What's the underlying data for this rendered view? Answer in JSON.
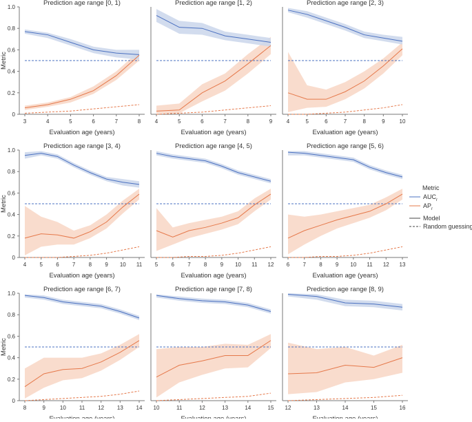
{
  "chart_data": {
    "type": "line",
    "ylabel": "Metric",
    "xlabel": "Evaluation age (years)",
    "ylim": [
      0,
      1
    ],
    "yticks": [
      0,
      0.2,
      0.4,
      0.6,
      0.8,
      1.0
    ],
    "ytick_labels": [
      "0",
      "0.2",
      "0.4",
      "0.6",
      "0.8",
      "1.0"
    ],
    "grid": false,
    "colors": {
      "auc": "#4a70c0",
      "auc_band": "#cdd8ec",
      "ap": "#e5784a",
      "ap_band": "#f8d8c8"
    },
    "legend": {
      "placement": "right",
      "title": "Metric",
      "items": [
        {
          "label": "AUC",
          "sub": "r",
          "kind": "auc"
        },
        {
          "label": "AP",
          "sub": "r",
          "kind": "ap"
        },
        {
          "label": "Model",
          "kind": "solid"
        },
        {
          "label": "Random guessing",
          "kind": "dashed"
        }
      ]
    },
    "panels": [
      {
        "title": "Prediction age range [0, 1)",
        "x": [
          3,
          4,
          5,
          6,
          7,
          8
        ],
        "auc": [
          0.77,
          0.74,
          0.67,
          0.6,
          0.57,
          0.555
        ],
        "auc_lo": [
          0.75,
          0.71,
          0.64,
          0.57,
          0.53,
          0.51
        ],
        "auc_hi": [
          0.79,
          0.76,
          0.7,
          0.63,
          0.6,
          0.6
        ],
        "ap": [
          0.06,
          0.09,
          0.14,
          0.22,
          0.36,
          0.55
        ],
        "ap_lo": [
          0.04,
          0.07,
          0.11,
          0.19,
          0.32,
          0.5
        ],
        "ap_hi": [
          0.08,
          0.11,
          0.16,
          0.26,
          0.4,
          0.59
        ],
        "ap_random": [
          0.01,
          0.02,
          0.03,
          0.05,
          0.07,
          0.09
        ],
        "auc_random": 0.5
      },
      {
        "title": "Prediction age range [1, 2)",
        "x": [
          4,
          5,
          6,
          7,
          8,
          9
        ],
        "auc": [
          0.92,
          0.81,
          0.8,
          0.73,
          0.7,
          0.67
        ],
        "auc_lo": [
          0.86,
          0.75,
          0.74,
          0.69,
          0.66,
          0.63
        ],
        "auc_hi": [
          0.98,
          0.87,
          0.85,
          0.77,
          0.74,
          0.71
        ],
        "ap": [
          0.03,
          0.04,
          0.2,
          0.31,
          0.47,
          0.64
        ],
        "ap_lo": [
          0.01,
          0.01,
          0.12,
          0.22,
          0.38,
          0.56
        ],
        "ap_hi": [
          0.08,
          0.1,
          0.28,
          0.38,
          0.56,
          0.72
        ],
        "ap_random": [
          0.0,
          0.01,
          0.02,
          0.04,
          0.06,
          0.08
        ],
        "auc_random": 0.5
      },
      {
        "title": "Prediction age range [2, 3)",
        "x": [
          4,
          5,
          6,
          7,
          8,
          9,
          10
        ],
        "auc": [
          0.97,
          0.93,
          0.87,
          0.81,
          0.74,
          0.71,
          0.68
        ],
        "auc_lo": [
          0.95,
          0.9,
          0.84,
          0.78,
          0.71,
          0.68,
          0.65
        ],
        "auc_hi": [
          0.99,
          0.96,
          0.9,
          0.84,
          0.77,
          0.74,
          0.72
        ],
        "ap": [
          0.2,
          0.14,
          0.14,
          0.21,
          0.31,
          0.45,
          0.61
        ],
        "ap_lo": [
          0.02,
          0.06,
          0.07,
          0.14,
          0.24,
          0.38,
          0.55
        ],
        "ap_hi": [
          0.58,
          0.27,
          0.23,
          0.3,
          0.4,
          0.52,
          0.67
        ],
        "ap_random": [
          0.0,
          0.0,
          0.01,
          0.02,
          0.04,
          0.06,
          0.09
        ],
        "auc_random": 0.5
      },
      {
        "title": "Prediction age range [3, 4)",
        "x": [
          4,
          5,
          6,
          7,
          8,
          9,
          10,
          11
        ],
        "auc": [
          0.95,
          0.97,
          0.94,
          0.86,
          0.79,
          0.73,
          0.7,
          0.68
        ],
        "auc_lo": [
          0.92,
          0.95,
          0.92,
          0.84,
          0.77,
          0.71,
          0.67,
          0.65
        ],
        "auc_hi": [
          0.98,
          0.99,
          0.96,
          0.88,
          0.81,
          0.75,
          0.73,
          0.71
        ],
        "ap": [
          0.18,
          0.22,
          0.21,
          0.18,
          0.24,
          0.33,
          0.47,
          0.59
        ],
        "ap_lo": [
          0.02,
          0.1,
          0.12,
          0.12,
          0.18,
          0.27,
          0.41,
          0.54
        ],
        "ap_hi": [
          0.48,
          0.38,
          0.33,
          0.25,
          0.3,
          0.4,
          0.53,
          0.64
        ],
        "ap_random": [
          0.0,
          0.0,
          0.0,
          0.01,
          0.02,
          0.04,
          0.07,
          0.1
        ],
        "auc_random": 0.5
      },
      {
        "title": "Prediction age range [4, 5)",
        "x": [
          5,
          6,
          7,
          8,
          9,
          10,
          11,
          12
        ],
        "auc": [
          0.97,
          0.94,
          0.92,
          0.9,
          0.85,
          0.79,
          0.75,
          0.71
        ],
        "auc_lo": [
          0.95,
          0.92,
          0.9,
          0.88,
          0.83,
          0.77,
          0.73,
          0.69
        ],
        "auc_hi": [
          0.99,
          0.96,
          0.94,
          0.92,
          0.87,
          0.81,
          0.77,
          0.73
        ],
        "ap": [
          0.25,
          0.19,
          0.25,
          0.28,
          0.32,
          0.37,
          0.49,
          0.59
        ],
        "ap_lo": [
          0.06,
          0.12,
          0.18,
          0.22,
          0.26,
          0.31,
          0.43,
          0.54
        ],
        "ap_hi": [
          0.46,
          0.28,
          0.32,
          0.35,
          0.38,
          0.43,
          0.55,
          0.64
        ],
        "ap_random": [
          0.0,
          0.0,
          0.01,
          0.01,
          0.02,
          0.04,
          0.07,
          0.1
        ],
        "auc_random": 0.5
      },
      {
        "title": "Prediction age range [5, 6)",
        "x": [
          6,
          7,
          8,
          9,
          10,
          11,
          12,
          13
        ],
        "auc": [
          0.98,
          0.97,
          0.95,
          0.93,
          0.91,
          0.84,
          0.79,
          0.75
        ],
        "auc_lo": [
          0.95,
          0.95,
          0.93,
          0.91,
          0.89,
          0.82,
          0.77,
          0.73
        ],
        "auc_hi": [
          0.99,
          0.99,
          0.97,
          0.95,
          0.93,
          0.86,
          0.81,
          0.77
        ],
        "ap": [
          0.18,
          0.25,
          0.3,
          0.35,
          0.39,
          0.43,
          0.5,
          0.59
        ],
        "ap_lo": [
          0.03,
          0.12,
          0.2,
          0.27,
          0.32,
          0.37,
          0.44,
          0.54
        ],
        "ap_hi": [
          0.4,
          0.38,
          0.4,
          0.43,
          0.46,
          0.49,
          0.56,
          0.64
        ],
        "ap_random": [
          0.0,
          0.0,
          0.01,
          0.01,
          0.02,
          0.04,
          0.07,
          0.1
        ],
        "auc_random": 0.5
      },
      {
        "title": "Prediction age range [6, 7)",
        "x": [
          8,
          9,
          10,
          11,
          12,
          13,
          14
        ],
        "auc": [
          0.98,
          0.96,
          0.92,
          0.9,
          0.88,
          0.83,
          0.77
        ],
        "auc_lo": [
          0.96,
          0.94,
          0.9,
          0.88,
          0.86,
          0.81,
          0.75
        ],
        "auc_hi": [
          0.99,
          0.98,
          0.94,
          0.92,
          0.9,
          0.85,
          0.79
        ],
        "ap": [
          0.13,
          0.25,
          0.29,
          0.3,
          0.36,
          0.45,
          0.56
        ],
        "ap_lo": [
          0.02,
          0.12,
          0.19,
          0.21,
          0.28,
          0.38,
          0.5
        ],
        "ap_hi": [
          0.3,
          0.4,
          0.4,
          0.4,
          0.44,
          0.52,
          0.62
        ],
        "ap_random": [
          0.0,
          0.01,
          0.02,
          0.03,
          0.04,
          0.06,
          0.09
        ],
        "auc_random": 0.5
      },
      {
        "title": "Prediction age range [7, 8)",
        "x": [
          10,
          11,
          12,
          13,
          14,
          15
        ],
        "auc": [
          0.98,
          0.95,
          0.93,
          0.92,
          0.89,
          0.83
        ],
        "auc_lo": [
          0.96,
          0.93,
          0.91,
          0.9,
          0.87,
          0.81
        ],
        "auc_hi": [
          0.99,
          0.97,
          0.95,
          0.94,
          0.91,
          0.85
        ],
        "ap": [
          0.22,
          0.33,
          0.37,
          0.42,
          0.42,
          0.56
        ],
        "ap_lo": [
          0.03,
          0.17,
          0.24,
          0.3,
          0.31,
          0.49
        ],
        "ap_hi": [
          0.48,
          0.5,
          0.5,
          0.53,
          0.52,
          0.62
        ],
        "ap_random": [
          0.0,
          0.01,
          0.02,
          0.03,
          0.04,
          0.07
        ],
        "auc_random": 0.5
      },
      {
        "title": "Prediction age range [8, 9)",
        "x": [
          12,
          13,
          14,
          15,
          16
        ],
        "auc": [
          0.99,
          0.97,
          0.91,
          0.9,
          0.87
        ],
        "auc_lo": [
          0.97,
          0.94,
          0.88,
          0.87,
          0.84
        ],
        "auc_hi": [
          1.0,
          0.99,
          0.94,
          0.93,
          0.9
        ],
        "ap": [
          0.25,
          0.26,
          0.33,
          0.31,
          0.4
        ],
        "ap_lo": [
          0.06,
          0.08,
          0.17,
          0.2,
          0.26
        ],
        "ap_hi": [
          0.54,
          0.48,
          0.5,
          0.42,
          0.52
        ],
        "ap_random": [
          0.0,
          0.01,
          0.02,
          0.03,
          0.05
        ],
        "auc_random": 0.5
      }
    ]
  }
}
